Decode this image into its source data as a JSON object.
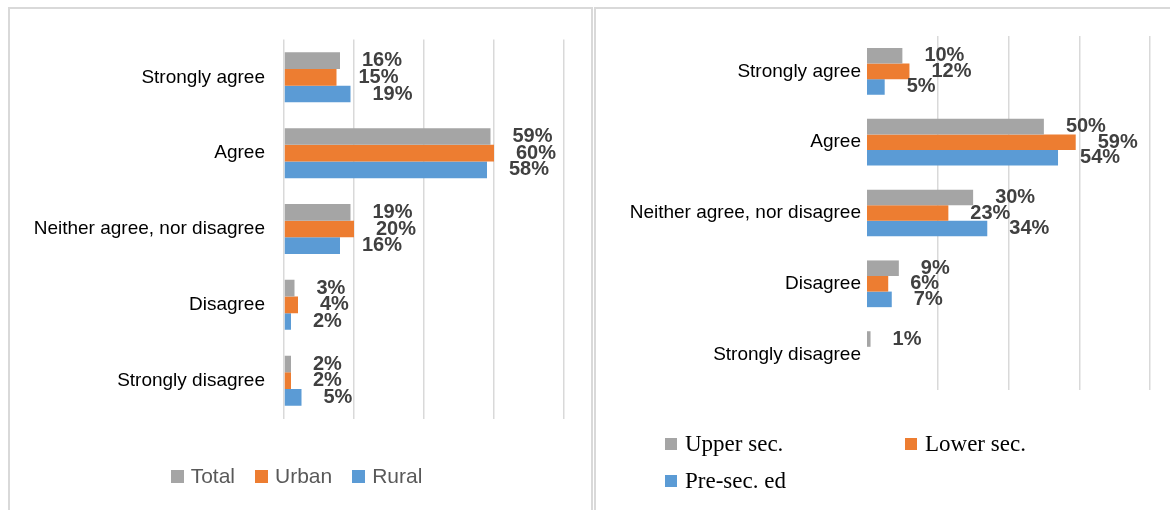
{
  "chart_data": [
    {
      "type": "bar",
      "orientation": "horizontal",
      "categories": [
        "Strongly agree",
        "Agree",
        "Neither agree, nor disagree",
        "Disagree",
        "Strongly disagree"
      ],
      "series": [
        {
          "name": "Total",
          "color": "#a5a5a5",
          "values": [
            16,
            59,
            19,
            3,
            2
          ],
          "value_labels": [
            "16%",
            "59%",
            "19%",
            "3%",
            "2%"
          ]
        },
        {
          "name": "Urban",
          "color": "#ed7d31",
          "values": [
            15,
            60,
            20,
            4,
            2
          ],
          "value_labels": [
            "15%",
            "60%",
            "20%",
            "4%",
            "2%"
          ]
        },
        {
          "name": "Rural",
          "color": "#5b9bd5",
          "values": [
            19,
            58,
            16,
            2,
            5
          ],
          "value_labels": [
            "19%",
            "58%",
            "16%",
            "2%",
            "5%"
          ]
        }
      ],
      "xlim": [
        0,
        80
      ],
      "xticks": [
        {
          "value": 0,
          "label": null
        },
        {
          "value": 20,
          "label": null
        },
        {
          "value": 40,
          "label": null
        },
        {
          "value": 60,
          "label": null
        },
        {
          "value": 80,
          "label": null
        }
      ],
      "grid": "x",
      "tick_labels": "y",
      "legend": "bottom"
    },
    {
      "type": "bar",
      "orientation": "horizontal",
      "categories": [
        "Strongly agree",
        "Agree",
        "Neither agree, nor disagree",
        "Disagree",
        "Strongly disagree"
      ],
      "series": [
        {
          "name": "Upper sec.",
          "color": "#a5a5a5",
          "values": [
            10,
            50,
            30,
            9,
            1
          ],
          "value_labels": [
            "10%",
            "50%",
            "30%",
            "9%",
            "1%"
          ]
        },
        {
          "name": "Lower sec.",
          "color": "#ed7d31",
          "values": [
            12,
            59,
            23,
            6,
            null
          ],
          "value_labels": [
            "12%",
            "59%",
            "23%",
            "6%",
            null
          ]
        },
        {
          "name": "Pre-sec. ed",
          "color": "#5b9bd5",
          "values": [
            5,
            54,
            34,
            7,
            null
          ],
          "value_labels": [
            "5%",
            "54%",
            "34%",
            "7%",
            null
          ]
        }
      ],
      "xlim": [
        0,
        80
      ],
      "xticks": [
        {
          "value": 20,
          "label": null
        },
        {
          "value": 40,
          "label": null
        },
        {
          "value": 60,
          "label": null
        },
        {
          "value": 80,
          "label": null
        }
      ],
      "grid": "x",
      "tick_labels": "y",
      "legend": "bottom left"
    }
  ]
}
